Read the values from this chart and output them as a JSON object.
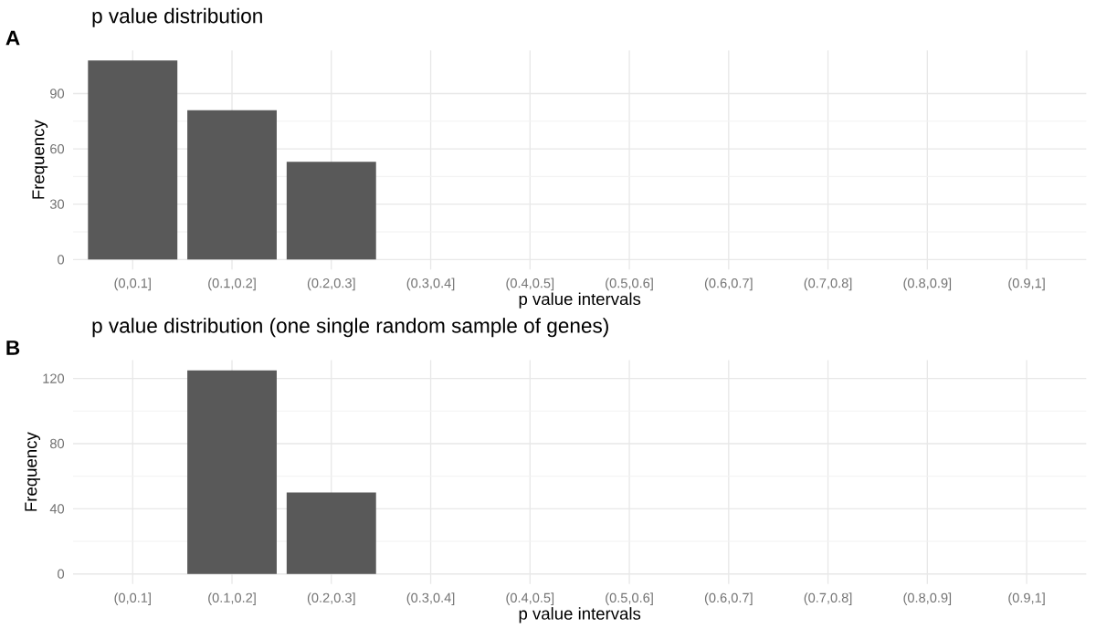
{
  "chart_data": [
    {
      "type": "bar",
      "title": "p value distribution",
      "xlabel": "p value intervals",
      "ylabel": "Frequency",
      "annotations": [
        "A"
      ],
      "categories": [
        "(0,0.1]",
        "(0.1,0.2]",
        "(0.2,0.3]",
        "(0.3,0.4]",
        "(0.4,0.5]",
        "(0.5,0.6]",
        "(0.6,0.7]",
        "(0.7,0.8]",
        "(0.8,0.9]",
        "(0.9,1]"
      ],
      "values": [
        108,
        81,
        53,
        0,
        0,
        0,
        0,
        0,
        0,
        0
      ],
      "color": "#595959",
      "ylim": [
        -5.4,
        113.4
      ],
      "yticks": [
        0,
        30,
        60,
        90
      ],
      "grid": true
    },
    {
      "type": "bar",
      "title": "p value distribution (one single random sample of genes)",
      "xlabel": "p value intervals",
      "ylabel": "Frequency",
      "annotations": [
        "B"
      ],
      "categories": [
        "(0,0.1]",
        "(0.1,0.2]",
        "(0.2,0.3]",
        "(0.3,0.4]",
        "(0.4,0.5]",
        "(0.5,0.6]",
        "(0.6,0.7]",
        "(0.7,0.8]",
        "(0.8,0.9]",
        "(0.9,1]"
      ],
      "values": [
        0,
        125,
        50,
        0,
        0,
        0,
        0,
        0,
        0,
        0
      ],
      "color": "#595959",
      "ylim": [
        -6.25,
        131.25
      ],
      "yticks": [
        0,
        40,
        80,
        120
      ],
      "grid": true
    }
  ]
}
